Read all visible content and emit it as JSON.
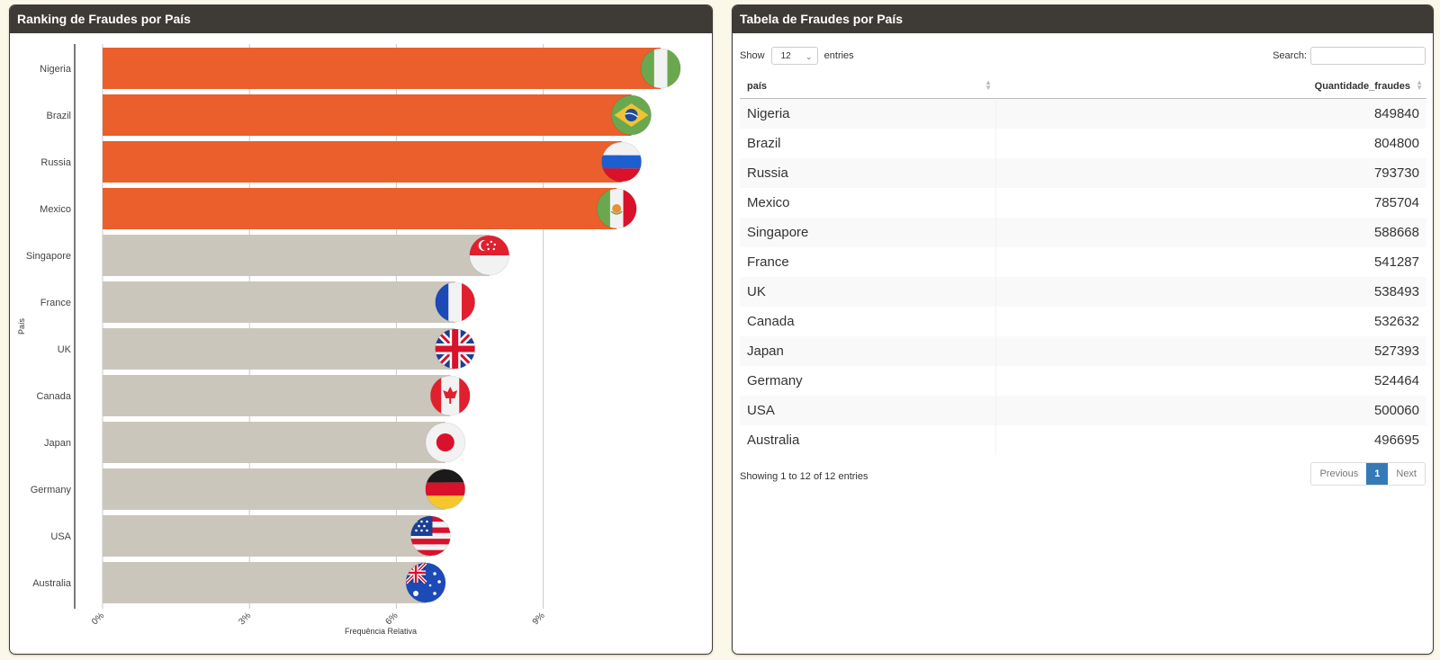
{
  "left_panel": {
    "title": "Ranking de Fraudes por País"
  },
  "right_panel": {
    "title": "Tabela de Fraudes por País"
  },
  "chart_data": {
    "type": "bar",
    "orientation": "horizontal",
    "xlabel": "Frequência Relativa",
    "ylabel": "País",
    "x_ticks": [
      "0%",
      "3%",
      "6%",
      "9%"
    ],
    "xlim": [
      0,
      12
    ],
    "grid": true,
    "categories": [
      "Nigeria",
      "Brazil",
      "Russia",
      "Mexico",
      "Singapore",
      "France",
      "UK",
      "Canada",
      "Japan",
      "Germany",
      "USA",
      "Australia"
    ],
    "values": [
      11.4,
      10.8,
      10.6,
      10.5,
      7.9,
      7.2,
      7.2,
      7.1,
      7.0,
      7.0,
      6.7,
      6.6
    ],
    "highlight_count": 4,
    "colors": {
      "highlight": "#ea5f2b",
      "normal": "#cbc6bb"
    },
    "flags": [
      "nigeria-flag",
      "brazil-flag",
      "russia-flag",
      "mexico-flag",
      "singapore-flag",
      "france-flag",
      "uk-flag",
      "canada-flag",
      "japan-flag",
      "germany-flag",
      "usa-flag",
      "australia-flag"
    ]
  },
  "table": {
    "show_label": "Show",
    "entries_label": "entries",
    "page_length": "12",
    "search_label": "Search:",
    "search_value": "",
    "columns": [
      "país",
      "Quantidade_fraudes"
    ],
    "rows": [
      {
        "pais": "Nigeria",
        "qtd": "849840"
      },
      {
        "pais": "Brazil",
        "qtd": "804800"
      },
      {
        "pais": "Russia",
        "qtd": "793730"
      },
      {
        "pais": "Mexico",
        "qtd": "785704"
      },
      {
        "pais": "Singapore",
        "qtd": "588668"
      },
      {
        "pais": "France",
        "qtd": "541287"
      },
      {
        "pais": "UK",
        "qtd": "538493"
      },
      {
        "pais": "Canada",
        "qtd": "532632"
      },
      {
        "pais": "Japan",
        "qtd": "527393"
      },
      {
        "pais": "Germany",
        "qtd": "524464"
      },
      {
        "pais": "USA",
        "qtd": "500060"
      },
      {
        "pais": "Australia",
        "qtd": "496695"
      }
    ],
    "info": "Showing 1 to 12 of 12 entries",
    "pager": {
      "previous": "Previous",
      "current": "1",
      "next": "Next"
    }
  }
}
